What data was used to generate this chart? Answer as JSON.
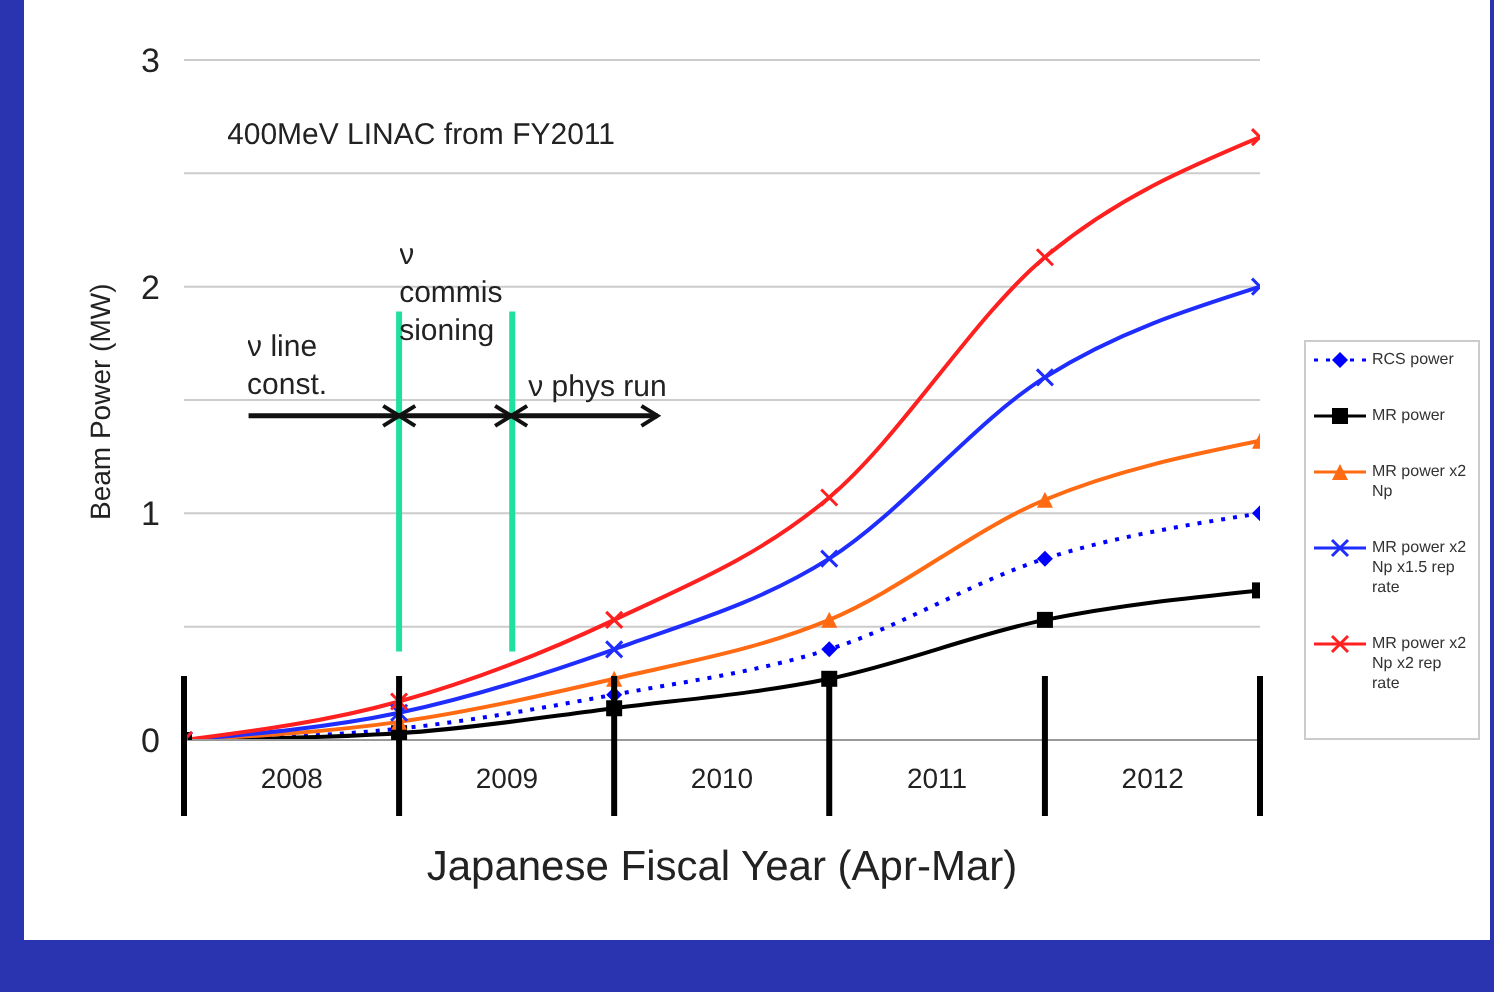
{
  "chart_data": {
    "type": "line",
    "xlabel": "Japanese Fiscal Year (Apr-Mar)",
    "ylabel": "Beam Power (MW)",
    "x": [
      "2008-04-01",
      "2009-04-01",
      "2010-04-01",
      "2011-04-01",
      "2012-04-01",
      "2013-04-01"
    ],
    "xlim": [
      "2008-04-01",
      "2013-04-01"
    ],
    "xticks": [
      {
        "value": "2008-10-01",
        "label": "2008"
      },
      {
        "value": "2009-10-01",
        "label": "2009"
      },
      {
        "value": "2010-10-01",
        "label": "2010"
      },
      {
        "value": "2011-10-01",
        "label": "2011"
      },
      {
        "value": "2012-10-01",
        "label": "2012"
      }
    ],
    "ylim": [
      0,
      3
    ],
    "yticks": [
      0,
      {
        "value": 0.5,
        "label": null
      },
      1,
      {
        "value": 1.5,
        "label": null
      },
      2,
      {
        "value": 2.5,
        "label": null
      },
      3
    ],
    "grid": "y",
    "legend": "right",
    "series": [
      {
        "name": "RCS power",
        "color": "#0000ff",
        "marker": "diamond",
        "line_style": "dotted",
        "values": [
          0,
          0.05,
          0.2,
          0.4,
          0.8,
          1.0
        ]
      },
      {
        "name": "MR power",
        "color": "#000000",
        "marker": "square",
        "line_style": "solid",
        "values": [
          0,
          0.03,
          0.14,
          0.27,
          0.53,
          0.66
        ]
      },
      {
        "name": "MR power x2 Np",
        "color": "#ff6a13",
        "marker": "triangle",
        "line_style": "solid",
        "values": [
          0,
          0.08,
          0.27,
          0.53,
          1.06,
          1.32
        ]
      },
      {
        "name": "MR power x2 Np x1.5 rep rate",
        "color": "#1f2dff",
        "marker": "cross",
        "line_style": "solid",
        "values": [
          0,
          0.12,
          0.4,
          0.8,
          1.6,
          2.0
        ]
      },
      {
        "name": "MR power x2 Np x2 rep rate",
        "color": "#ff2020",
        "marker": "cross",
        "line_style": "solid",
        "values": [
          0,
          0.17,
          0.53,
          1.07,
          2.13,
          2.66
        ]
      }
    ],
    "ref_lines": [
      {
        "axis": "x",
        "value": "2009-04-01",
        "color": "#20e0a0"
      },
      {
        "axis": "x",
        "value": "2009-10-10",
        "color": "#20e0a0"
      }
    ],
    "annotations": [
      "400MeV LINAC from FY2011",
      {
        "text": "ν line const.",
        "x": "2009-04-01",
        "y": 1.43
      },
      "ν commissioning",
      {
        "text": "ν phys run",
        "x": "2009-10-10",
        "y": 1.43
      }
    ]
  }
}
